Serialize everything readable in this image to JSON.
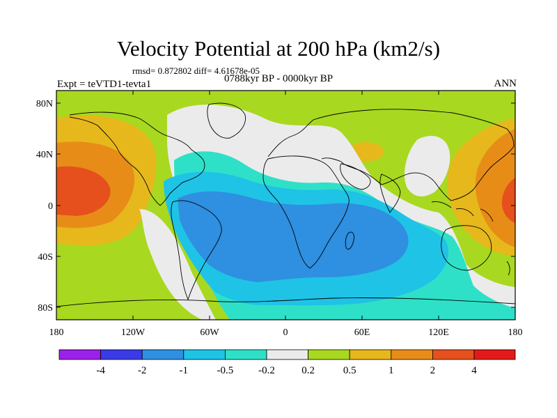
{
  "figure": {
    "title": "Velocity Potential at 200 hPa (km2/s)",
    "stats": "rmsd= 0.872802 diff= 4.61678e-05",
    "experiment": "Expt = teVTD1-tevta1",
    "period": "0788kyr BP - 0000kyr BP",
    "season": "ANN"
  },
  "axes": {
    "lat_labels": [
      "80N",
      "40N",
      "0",
      "40S",
      "80S"
    ],
    "lon_labels": [
      "180",
      "120W",
      "60W",
      "0",
      "60E",
      "120E",
      "180"
    ]
  },
  "colorbar": {
    "labels": [
      "-4",
      "-2",
      "-1",
      "-0.5",
      "-0.2",
      "0.2",
      "0.5",
      "1",
      "2",
      "4"
    ],
    "colors": [
      "#9b20e8",
      "#3a3ae6",
      "#2f8fe0",
      "#1fc3e6",
      "#2fe0c8",
      "#ebebeb",
      "#a8d820",
      "#e6b81c",
      "#e88c18",
      "#e6501c",
      "#e41a1a"
    ]
  },
  "palette": {
    "neg_weak": "#2fe0c8",
    "neg_mid": "#1fc3e6",
    "neg_strong": "#2f8fe0",
    "neutral": "#ebebeb",
    "pos_weak": "#a8d820",
    "pos_mid": "#e6b81c",
    "pos_strong": "#e88c18",
    "pos_max": "#e6501c"
  }
}
